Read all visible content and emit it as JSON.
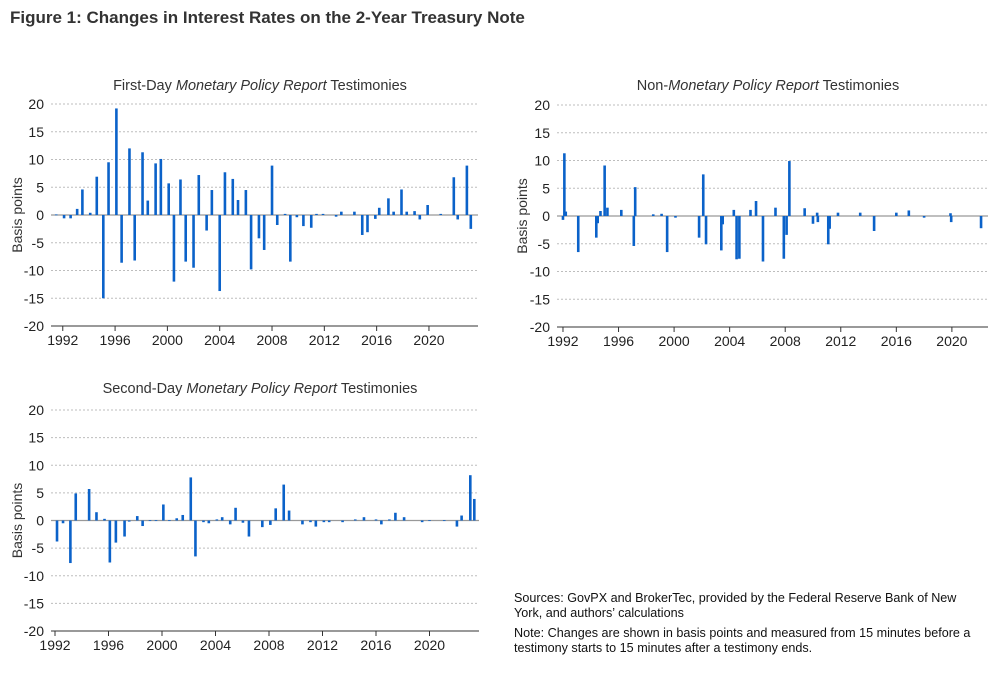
{
  "figure_title": "Figure 1: Changes in Interest Rates on the 2-Year Treasury Note",
  "notes": {
    "sources": "Sources: GovPX and BrokerTec, provided by the Federal Reserve Bank of New York, and authors’ calculations",
    "note": "Note: Changes are shown in basis points and measured from 15 minutes before a testimony starts to 15 minutes after a testimony ends."
  },
  "colors": {
    "bar": "#0b62c9",
    "grid": "#bdbdbd",
    "zero_line": "#999999"
  },
  "chart_data": [
    {
      "type": "bar",
      "title": {
        "pre": "First-Day ",
        "italic": "Monetary Policy Report",
        "post": " Testimonies"
      },
      "ylabel": "Basis points",
      "ylim": [
        -20,
        20
      ],
      "yticks": [
        "20",
        "15",
        "10",
        "5",
        "0",
        "-5",
        "-10",
        "-15",
        "-20"
      ],
      "xticks": [
        "1992",
        "1996",
        "2000",
        "2004",
        "2008",
        "2012",
        "2016",
        "2020"
      ],
      "xlim": [
        1991.1,
        2023.75
      ],
      "grid": true,
      "points": [
        [
          1991.5,
          0.1
        ],
        [
          1992.1,
          -0.6
        ],
        [
          1992.6,
          -0.6
        ],
        [
          1993.1,
          1.1
        ],
        [
          1993.5,
          4.6
        ],
        [
          1994.1,
          0.4
        ],
        [
          1994.6,
          6.9
        ],
        [
          1995.1,
          -15
        ],
        [
          1995.5,
          9.5
        ],
        [
          1996.1,
          19.2
        ],
        [
          1996.5,
          -8.6
        ],
        [
          1997.1,
          12
        ],
        [
          1997.5,
          -8.2
        ],
        [
          1998.1,
          11.3
        ],
        [
          1998.5,
          2.6
        ],
        [
          1999.1,
          9.3
        ],
        [
          1999.5,
          10.1
        ],
        [
          2000.1,
          5.7
        ],
        [
          2000.5,
          -12
        ],
        [
          2001.0,
          6.4
        ],
        [
          2001.4,
          -8.4
        ],
        [
          2002.0,
          -9.5
        ],
        [
          2002.4,
          7.2
        ],
        [
          2003.0,
          -2.8
        ],
        [
          2003.4,
          4.5
        ],
        [
          2004.0,
          -13.7
        ],
        [
          2004.4,
          7.7
        ],
        [
          2005.0,
          6.5
        ],
        [
          2005.4,
          2.7
        ],
        [
          2006.0,
          4.5
        ],
        [
          2006.4,
          -9.8
        ],
        [
          2007.0,
          -4.2
        ],
        [
          2007.4,
          -6.3
        ],
        [
          2008.0,
          8.9
        ],
        [
          2008.4,
          -1.8
        ],
        [
          2009.0,
          0.2
        ],
        [
          2009.4,
          -8.4
        ],
        [
          2009.9,
          -0.4
        ],
        [
          2010.4,
          -2.0
        ],
        [
          2011.0,
          -2.3
        ],
        [
          2011.4,
          0.2
        ],
        [
          2011.9,
          0.2
        ],
        [
          2012.9,
          -0.3
        ],
        [
          2013.3,
          0.6
        ],
        [
          2014.3,
          0.6
        ],
        [
          2014.9,
          -3.6
        ],
        [
          2015.3,
          -3.1
        ],
        [
          2015.9,
          -0.7
        ],
        [
          2016.2,
          1.3
        ],
        [
          2016.9,
          3.0
        ],
        [
          2017.3,
          0.6
        ],
        [
          2017.9,
          4.6
        ],
        [
          2018.3,
          0.6
        ],
        [
          2018.9,
          0.7
        ],
        [
          2019.3,
          -0.8
        ],
        [
          2019.9,
          1.8
        ],
        [
          2020.9,
          0.2
        ],
        [
          2021.9,
          6.8
        ],
        [
          2022.2,
          -0.8
        ],
        [
          2022.9,
          8.9
        ],
        [
          2023.2,
          -2.5
        ]
      ]
    },
    {
      "type": "bar",
      "title": {
        "pre": "Non-",
        "italic": "Monetary Policy Report",
        "post": " Testimonies"
      },
      "ylabel": "Basis points",
      "ylim": [
        -20,
        20
      ],
      "yticks": [
        "20",
        "15",
        "10",
        "5",
        "0",
        "-5",
        "-10",
        "-15",
        "-20"
      ],
      "xticks": [
        "1992",
        "1996",
        "2000",
        "2004",
        "2008",
        "2012",
        "2016",
        "2020"
      ],
      "xlim": [
        1991.57,
        2022.6
      ],
      "grid": true,
      "points": [
        [
          1992.0,
          -0.7
        ],
        [
          1992.1,
          11.3
        ],
        [
          1992.2,
          0.8
        ],
        [
          1993.1,
          -6.5
        ],
        [
          1994.4,
          -3.9
        ],
        [
          1994.5,
          -1.3
        ],
        [
          1994.7,
          0.9
        ],
        [
          1995.0,
          9.1
        ],
        [
          1995.2,
          1.5
        ],
        [
          1996.2,
          1.1
        ],
        [
          1997.1,
          -5.4
        ],
        [
          1997.2,
          5.2
        ],
        [
          1998.5,
          0.3
        ],
        [
          1999.1,
          0.4
        ],
        [
          1999.5,
          -6.5
        ],
        [
          2000.1,
          -0.3
        ],
        [
          2001.8,
          -3.9
        ],
        [
          2002.1,
          7.5
        ],
        [
          2002.3,
          -5.1
        ],
        [
          2003.4,
          -6.2
        ],
        [
          2003.5,
          -1.5
        ],
        [
          2004.3,
          1.1
        ],
        [
          2004.5,
          -7.8
        ],
        [
          2004.7,
          -7.7
        ],
        [
          2005.5,
          1.1
        ],
        [
          2005.9,
          2.7
        ],
        [
          2006.4,
          -8.2
        ],
        [
          2007.3,
          1.5
        ],
        [
          2007.9,
          -7.7
        ],
        [
          2008.1,
          -3.4
        ],
        [
          2008.3,
          9.9
        ],
        [
          2009.4,
          1.4
        ],
        [
          2010.0,
          -1.4
        ],
        [
          2010.3,
          0.6
        ],
        [
          2010.35,
          -1.1
        ],
        [
          2011.1,
          -5.1
        ],
        [
          2011.2,
          -2.3
        ],
        [
          2011.8,
          0.6
        ],
        [
          2013.4,
          0.6
        ],
        [
          2014.4,
          -2.7
        ],
        [
          2016.0,
          0.6
        ],
        [
          2016.9,
          1.0
        ],
        [
          2018.0,
          -0.3
        ],
        [
          2019.9,
          0.5
        ],
        [
          2019.95,
          -1.1
        ],
        [
          2022.1,
          -2.2
        ]
      ]
    },
    {
      "type": "bar",
      "title": {
        "pre": "Second-Day ",
        "italic": "Monetary Policy Report",
        "post": " Testimonies"
      },
      "ylabel": "Basis points",
      "ylim": [
        -20,
        20
      ],
      "yticks": [
        "20",
        "15",
        "10",
        "5",
        "0",
        "-5",
        "-10",
        "-15",
        "-20"
      ],
      "xticks": [
        "1992",
        "1996",
        "2000",
        "2004",
        "2008",
        "2012",
        "2016",
        "2020"
      ],
      "xlim": [
        1991.7,
        2023.7
      ],
      "grid": true,
      "points": [
        [
          1992.15,
          -3.8
        ],
        [
          1992.6,
          -0.5
        ],
        [
          1993.15,
          -7.7
        ],
        [
          1993.55,
          4.9
        ],
        [
          1994.55,
          5.7
        ],
        [
          1995.1,
          1.5
        ],
        [
          1995.7,
          0.3
        ],
        [
          1996.1,
          -7.6
        ],
        [
          1996.55,
          -4.0
        ],
        [
          1997.2,
          -2.9
        ],
        [
          1997.55,
          -0.2
        ],
        [
          1998.15,
          0.8
        ],
        [
          1998.55,
          -1.0
        ],
        [
          1999.1,
          0.05
        ],
        [
          1999.55,
          0.05
        ],
        [
          2000.1,
          2.9
        ],
        [
          2000.55,
          0.05
        ],
        [
          2001.1,
          0.4
        ],
        [
          2001.55,
          1.0
        ],
        [
          2002.15,
          7.8
        ],
        [
          2002.5,
          -6.5
        ],
        [
          2003.1,
          -0.3
        ],
        [
          2003.5,
          -0.5
        ],
        [
          2004.1,
          0.2
        ],
        [
          2004.5,
          0.6
        ],
        [
          2005.1,
          -0.7
        ],
        [
          2005.5,
          2.3
        ],
        [
          2006.05,
          -0.4
        ],
        [
          2006.5,
          -2.9
        ],
        [
          2007.5,
          -1.2
        ],
        [
          2008.1,
          -0.8
        ],
        [
          2008.5,
          2.2
        ],
        [
          2009.1,
          6.5
        ],
        [
          2009.5,
          1.8
        ],
        [
          2010.5,
          -0.7
        ],
        [
          2011.1,
          -0.3
        ],
        [
          2011.5,
          -1.1
        ],
        [
          2012.1,
          -0.3
        ],
        [
          2012.5,
          -0.3
        ],
        [
          2013.5,
          -0.3
        ],
        [
          2014.45,
          0.2
        ],
        [
          2015.1,
          0.6
        ],
        [
          2016.0,
          0.2
        ],
        [
          2016.4,
          -0.7
        ],
        [
          2017.0,
          0.2
        ],
        [
          2017.45,
          1.4
        ],
        [
          2018.1,
          0.6
        ],
        [
          2019.45,
          -0.3
        ],
        [
          2020.0,
          0.05
        ],
        [
          2021.1,
          0.05
        ],
        [
          2022.05,
          -1.1
        ],
        [
          2022.4,
          0.9
        ],
        [
          2023.05,
          8.2
        ],
        [
          2023.35,
          3.9
        ]
      ]
    }
  ]
}
